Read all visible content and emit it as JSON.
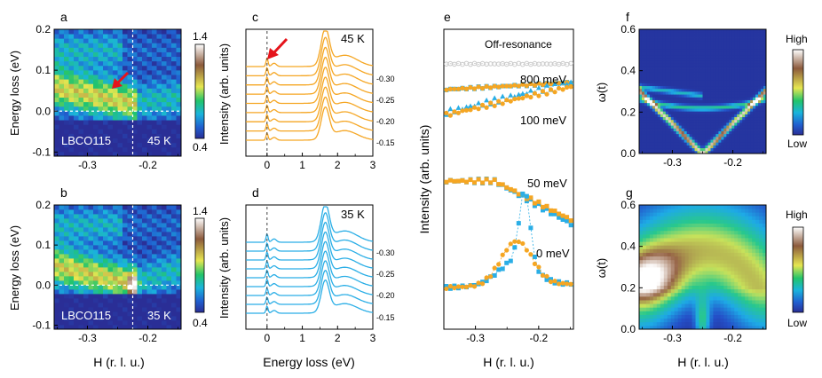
{
  "colors": {
    "orange": "#f5a623",
    "blue": "#2aaee6",
    "grey": "#c9c9c9",
    "arrow": "#e5141b",
    "dash": "#ffffff"
  },
  "chart_data": [
    {
      "id": "a",
      "type": "heatmap",
      "panel_label": "a",
      "xlabel": "",
      "ylabel": "Energy loss (eV)",
      "xlim": [
        -0.355,
        -0.145
      ],
      "ylim": [
        -0.11,
        0.2
      ],
      "xticks": [
        -0.3,
        -0.2
      ],
      "xtick_labels": [
        "-0.3",
        "-0.2"
      ],
      "yticks": [
        -0.1,
        0.0,
        0.1,
        0.2
      ],
      "ytick_labels": [
        "-0.1",
        "0.0",
        "0.1",
        "0.2"
      ],
      "sample_label": "LBCO115",
      "temperature": "45 K",
      "peak_x": -0.225,
      "colorbar": {
        "max_label": "1.4",
        "min_label": "0.4",
        "vmax": 1.4,
        "vmin": 0.4
      }
    },
    {
      "id": "b",
      "type": "heatmap",
      "panel_label": "b",
      "xlabel": "H (r. l. u.)",
      "ylabel": "Energy loss (eV)",
      "xlim": [
        -0.355,
        -0.145
      ],
      "ylim": [
        -0.11,
        0.2
      ],
      "xticks": [
        -0.3,
        -0.2
      ],
      "xtick_labels": [
        "-0.3",
        "-0.2"
      ],
      "yticks": [
        -0.1,
        0.0,
        0.1,
        0.2
      ],
      "ytick_labels": [
        "-0.1",
        "0.0",
        "0.1",
        "0.2"
      ],
      "sample_label": "LBCO115",
      "temperature": "35 K",
      "peak_x": -0.225,
      "colorbar": {
        "max_label": "1.4",
        "min_label": "0.4",
        "vmax": 1.4,
        "vmin": 0.4
      }
    },
    {
      "id": "c",
      "type": "line",
      "panel_label": "c",
      "xlabel": "",
      "ylabel": "Intensity (arb. units)",
      "xlim": [
        -0.6,
        3.0
      ],
      "xticks": [
        0,
        1,
        2,
        3
      ],
      "xtick_labels": [
        "0",
        "1",
        "2",
        "3"
      ],
      "temperature": "45 K",
      "series_count": 9,
      "right_labels": [
        "-0.30",
        "-0.25",
        "-0.20",
        "-0.15"
      ]
    },
    {
      "id": "d",
      "type": "line",
      "panel_label": "d",
      "xlabel": "Energy loss (eV)",
      "ylabel": "Intensity (arb. units)",
      "xlim": [
        -0.6,
        3.0
      ],
      "xticks": [
        0,
        1,
        2,
        3
      ],
      "xtick_labels": [
        "0",
        "1",
        "2",
        "3"
      ],
      "temperature": "35 K",
      "series_count": 9,
      "right_labels": [
        "-0.30",
        "-0.25",
        "-0.20",
        "-0.15"
      ]
    },
    {
      "id": "e",
      "type": "scatter",
      "panel_label": "e",
      "xlabel": "H (r. l. u.)",
      "ylabel": "Intensity (arb. units)",
      "xlim": [
        -0.35,
        -0.145
      ],
      "xticks": [
        -0.3,
        -0.2
      ],
      "xtick_labels": [
        "-0.3",
        "-0.2"
      ],
      "curve_labels": [
        "Off-resonance",
        "800 meV",
        "100 meV",
        "50 meV",
        "0 meV"
      ]
    },
    {
      "id": "f",
      "type": "heatmap",
      "panel_label": "f",
      "xlabel": "",
      "ylabel": "ω(t)",
      "xlim": [
        -0.355,
        -0.145
      ],
      "ylim": [
        0.0,
        0.6
      ],
      "xticks": [
        -0.3,
        -0.2
      ],
      "xtick_labels": [
        "-0.3",
        "-0.2"
      ],
      "yticks": [
        0.0,
        0.2,
        0.4,
        0.6
      ],
      "ytick_labels": [
        "0.0",
        "0.2",
        "0.4",
        "0.6"
      ],
      "colorbar": {
        "max_label": "High",
        "min_label": "Low"
      }
    },
    {
      "id": "g",
      "type": "heatmap",
      "panel_label": "g",
      "xlabel": "H (r. l. u.)",
      "ylabel": "ω(t)",
      "xlim": [
        -0.355,
        -0.145
      ],
      "ylim": [
        0.0,
        0.6
      ],
      "xticks": [
        -0.3,
        -0.2
      ],
      "xtick_labels": [
        "-0.3",
        "-0.2"
      ],
      "yticks": [
        0.0,
        0.2,
        0.4,
        0.6
      ],
      "ytick_labels": [
        "0.0",
        "0.2",
        "0.4",
        "0.6"
      ],
      "colorbar": {
        "max_label": "High",
        "min_label": "Low"
      }
    }
  ]
}
